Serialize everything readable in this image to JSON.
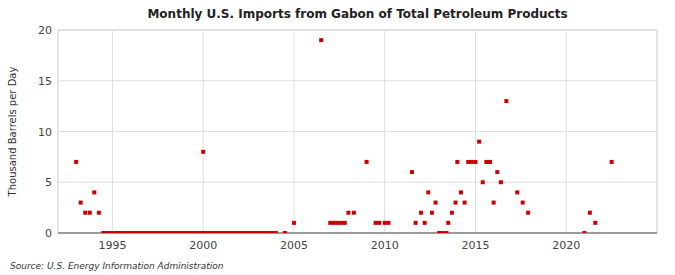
{
  "chart_data": {
    "type": "scatter",
    "title": "Monthly U.S. Imports from Gabon of Total Petroleum Products",
    "ylabel": "Thousand Barrels per Day",
    "source": "Source: U.S. Energy Information Administration",
    "color": "#cc0000",
    "marker": "square",
    "grid": true,
    "xlim": [
      1992.0,
      2025.0
    ],
    "ylim": [
      0,
      20
    ],
    "xticks": [
      1995,
      2000,
      2005,
      2010,
      2015,
      2020
    ],
    "yticks": [
      0,
      5,
      10,
      15,
      20
    ],
    "x": [
      1993.0,
      1993.25,
      1993.5,
      1993.75,
      1994.0,
      1994.25,
      1994.5,
      1994.6,
      1994.7,
      1994.8,
      1994.9,
      1995.0,
      1995.1,
      1995.2,
      1995.3,
      1995.4,
      1995.5,
      1995.6,
      1995.7,
      1995.8,
      1995.9,
      1996.0,
      1996.1,
      1996.2,
      1996.3,
      1996.4,
      1996.5,
      1996.6,
      1996.7,
      1996.8,
      1996.9,
      1997.0,
      1997.1,
      1997.2,
      1997.3,
      1997.4,
      1997.5,
      1997.6,
      1997.7,
      1997.8,
      1997.9,
      1998.0,
      1998.1,
      1998.2,
      1998.3,
      1998.4,
      1998.5,
      1998.6,
      1998.7,
      1998.8,
      1998.9,
      1999.0,
      1999.1,
      1999.2,
      1999.3,
      1999.4,
      1999.5,
      1999.6,
      1999.7,
      1999.8,
      1999.9,
      2000.0,
      2000.1,
      2000.2,
      2000.3,
      2000.4,
      2000.5,
      2000.6,
      2000.7,
      2000.8,
      2000.9,
      2001.0,
      2001.1,
      2001.2,
      2001.3,
      2001.4,
      2001.5,
      2001.6,
      2001.7,
      2001.8,
      2001.9,
      2002.0,
      2002.1,
      2002.2,
      2002.3,
      2002.4,
      2002.5,
      2002.6,
      2002.7,
      2002.8,
      2002.9,
      2003.0,
      2003.1,
      2003.2,
      2003.3,
      2003.4,
      2003.5,
      2003.6,
      2003.7,
      2003.8,
      2003.9,
      2004.0,
      2004.5,
      2005.0,
      2006.5,
      2007.0,
      2007.2,
      2007.4,
      2007.6,
      2007.8,
      2008.0,
      2008.3,
      2009.0,
      2009.5,
      2009.7,
      2010.0,
      2010.2,
      2011.5,
      2011.7,
      2012.0,
      2012.2,
      2012.4,
      2012.6,
      2012.8,
      2013.0,
      2013.2,
      2013.4,
      2013.5,
      2013.7,
      2013.9,
      2014.0,
      2014.2,
      2014.4,
      2014.6,
      2014.8,
      2015.0,
      2015.2,
      2015.4,
      2015.6,
      2015.8,
      2016.0,
      2016.2,
      2016.4,
      2016.7,
      2017.3,
      2017.6,
      2017.9,
      2021.0,
      2021.3,
      2021.6,
      2022.5
    ],
    "values": [
      7.0,
      3.0,
      2.0,
      2.0,
      4.0,
      2.0,
      0.0,
      0.0,
      0.0,
      0.0,
      0.0,
      0.0,
      0.0,
      0.0,
      0.0,
      0.0,
      0.0,
      0.0,
      0.0,
      0.0,
      0.0,
      0.0,
      0.0,
      0.0,
      0.0,
      0.0,
      0.0,
      0.0,
      0.0,
      0.0,
      0.0,
      0.0,
      0.0,
      0.0,
      0.0,
      0.0,
      0.0,
      0.0,
      0.0,
      0.0,
      0.0,
      0.0,
      0.0,
      0.0,
      0.0,
      0.0,
      0.0,
      0.0,
      0.0,
      0.0,
      0.0,
      0.0,
      0.0,
      0.0,
      0.0,
      0.0,
      0.0,
      0.0,
      0.0,
      0.0,
      0.0,
      8.0,
      0.0,
      0.0,
      0.0,
      0.0,
      0.0,
      0.0,
      0.0,
      0.0,
      0.0,
      0.0,
      0.0,
      0.0,
      0.0,
      0.0,
      0.0,
      0.0,
      0.0,
      0.0,
      0.0,
      0.0,
      0.0,
      0.0,
      0.0,
      0.0,
      0.0,
      0.0,
      0.0,
      0.0,
      0.0,
      0.0,
      0.0,
      0.0,
      0.0,
      0.0,
      0.0,
      0.0,
      0.0,
      0.0,
      0.0,
      0.0,
      0.0,
      1.0,
      19.0,
      1.0,
      1.0,
      1.0,
      1.0,
      1.0,
      2.0,
      2.0,
      7.0,
      1.0,
      1.0,
      1.0,
      1.0,
      6.0,
      1.0,
      2.0,
      1.0,
      4.0,
      2.0,
      3.0,
      0.0,
      0.0,
      0.0,
      1.0,
      2.0,
      3.0,
      7.0,
      4.0,
      3.0,
      7.0,
      7.0,
      7.0,
      9.0,
      5.0,
      7.0,
      7.0,
      3.0,
      6.0,
      5.0,
      13.0,
      4.0,
      3.0,
      2.0,
      0.0,
      2.0,
      1.0,
      7.0
    ]
  }
}
